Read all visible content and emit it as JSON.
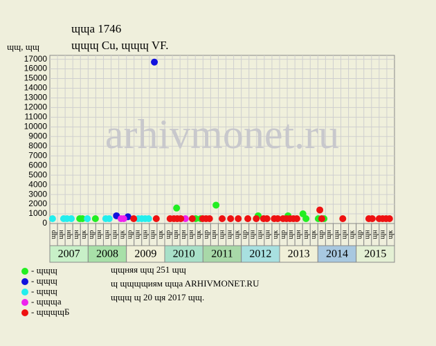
{
  "chart_data": {
    "type": "scatter",
    "title": "ɰɰa 1746",
    "subtitle": "ɰɰɰ Cu, ɰɰɰ VF.",
    "y_label": "ɰɰ, ɰɰ",
    "watermark": "arhivmonet.ru",
    "notes": [
      "ɰɰняя ɰɰ 251 ɰɰ",
      "ɰ ɰɰɰɰиям ɰɰa ARHIVMONET.RU",
      "ɰɰɰ ɰ 20 ɰя 2017 ɰɰ."
    ],
    "xlim": [
      2007,
      2016
    ],
    "ylim": [
      0,
      17400
    ],
    "yticks": [
      0,
      1000,
      2000,
      3000,
      4000,
      5000,
      6000,
      7000,
      8000,
      9000,
      10000,
      11000,
      12000,
      13000,
      14000,
      15000,
      16000,
      17000
    ],
    "grid": true,
    "years": [
      "2007",
      "2008",
      "2009",
      "2010",
      "2011",
      "2012",
      "2013",
      "2014",
      "2015"
    ],
    "year_colors": [
      "#c8f0c8",
      "#a8e0a8",
      "#f0f0d8",
      "#a8e0c8",
      "#a8d8a8",
      "#a8e0e0",
      "#f0f0d8",
      "#a8c8e0",
      "#e4f0d4"
    ],
    "column_labels": [
      "ɰp",
      "ɰн",
      "ɰн",
      "ɰн",
      "ɰк",
      "ɰp",
      "ɰн",
      "ɰн",
      "ɰн",
      "ɰк",
      "ɰp",
      "ɰн",
      "ɰн",
      "ɰн",
      "ɰк",
      "ɰp",
      "ɰн",
      "ɰн",
      "ɰн",
      "ɰк",
      "ɰp",
      "ɰн",
      "ɰн",
      "ɰн",
      "ɰк",
      "ɰp",
      "ɰн",
      "ɰн",
      "ɰн",
      "ɰк",
      "ɰp",
      "ɰн",
      "ɰн",
      "ɰн",
      "ɰк",
      "ɰp",
      "ɰн",
      "ɰн",
      "ɰн",
      "ɰк",
      "ɰp",
      "ɰн",
      "ɰн",
      "ɰн",
      "ɰк"
    ],
    "series": [
      {
        "name": "- ɰɰɰ",
        "color": "#22ee22",
        "x": [
          2007.78,
          2007.85,
          2008.19,
          2010.31,
          2010.81,
          2010.94,
          2011.34,
          2012.44,
          2013.22,
          2013.61,
          2013.69,
          2014.01,
          2014.16
        ],
        "values": [
          500,
          500,
          500,
          1600,
          500,
          500,
          1900,
          800,
          800,
          1000,
          500,
          500,
          500
        ]
      },
      {
        "name": "- ɰɰɰ",
        "color": "#1111dd",
        "x": [
          2008.74,
          2009.04,
          2009.73
        ],
        "values": [
          800,
          700,
          16700
        ]
      },
      {
        "name": "- ɰɰɰ",
        "color": "#22eeee",
        "x": [
          2007.07,
          2007.36,
          2007.45,
          2007.56,
          2007.98,
          2008.46,
          2008.55,
          2009.31,
          2009.4,
          2009.49,
          2009.58
        ],
        "values": [
          500,
          500,
          500,
          500,
          500,
          500,
          500,
          500,
          500,
          500,
          500
        ]
      },
      {
        "name": "- ɰɰɰa",
        "color": "#ee22ee",
        "x": [
          2008.86,
          2008.93,
          2010.54
        ],
        "values": [
          500,
          500,
          500
        ]
      },
      {
        "name": "- ɰɰɰɰБ",
        "color": "#ee1111",
        "x": [
          2009.19,
          2009.78,
          2010.14,
          2010.24,
          2010.33,
          2010.42,
          2010.72,
          2010.99,
          2011.08,
          2011.17,
          2011.5,
          2011.72,
          2011.92,
          2012.17,
          2012.39,
          2012.58,
          2012.67,
          2012.86,
          2012.95,
          2013.09,
          2013.18,
          2013.27,
          2013.36,
          2013.45,
          2014.05,
          2014.1,
          2014.65,
          2015.33,
          2015.42,
          2015.6,
          2015.69,
          2015.78,
          2015.87
        ],
        "values": [
          500,
          500,
          500,
          500,
          500,
          500,
          500,
          500,
          500,
          500,
          500,
          500,
          500,
          500,
          500,
          500,
          500,
          500,
          500,
          500,
          500,
          500,
          500,
          500,
          1400,
          500,
          500,
          500,
          500,
          500,
          500,
          500,
          500
        ]
      }
    ]
  }
}
